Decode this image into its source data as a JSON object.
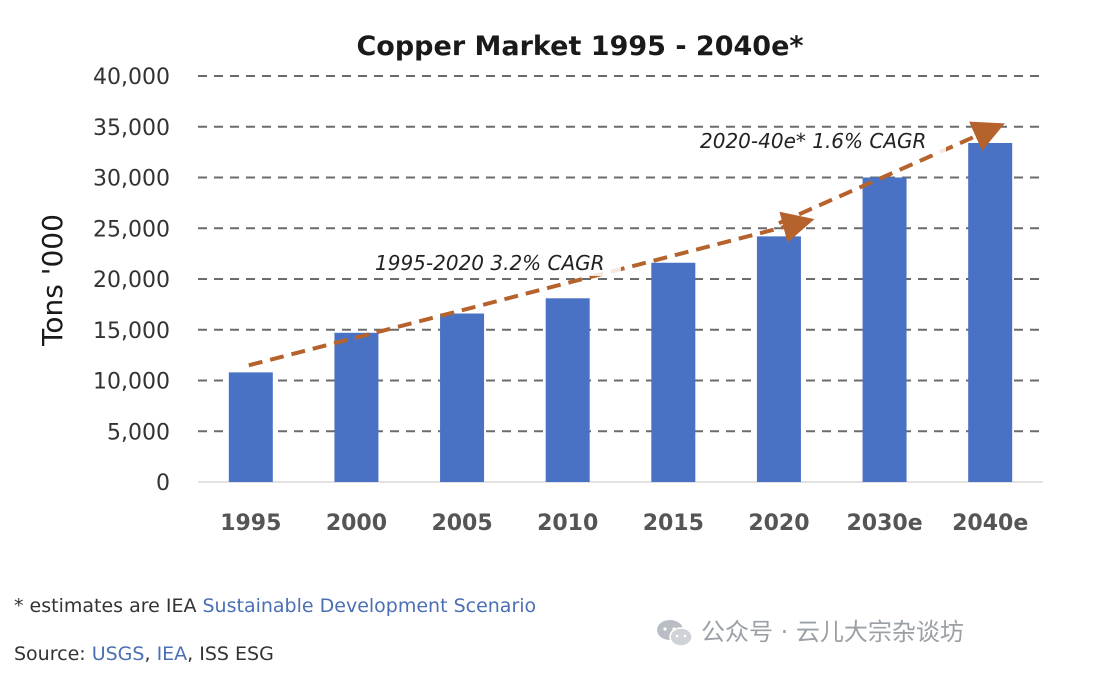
{
  "chart_data": {
    "type": "bar",
    "title": "Copper Market 1995 - 2040e*",
    "ylabel": "Tons '000",
    "xlabel": "",
    "ylim": [
      0,
      40000
    ],
    "yticks": [
      "0",
      "5,000",
      "10,000",
      "15,000",
      "20,000",
      "25,000",
      "30,000",
      "35,000",
      "40,000"
    ],
    "ytick_values": [
      0,
      5000,
      10000,
      15000,
      20000,
      25000,
      30000,
      35000,
      40000
    ],
    "grid": true,
    "categories": [
      "1995",
      "2000",
      "2005",
      "2010",
      "2015",
      "2020",
      "2030e",
      "2040e"
    ],
    "values": [
      10800,
      14700,
      16600,
      18100,
      21600,
      24200,
      30000,
      33400
    ],
    "bar_color": "#4a72c4",
    "annotations": [
      {
        "text": "1995-2020  3.2% CAGR",
        "from": {
          "x": "1995",
          "y": 11500
        },
        "to": {
          "x": "2020",
          "y": 25500
        },
        "color": "#b5622c"
      },
      {
        "text": "2020-40e*  1.6% CAGR",
        "from": {
          "x": "2020",
          "y": 25500
        },
        "to": {
          "x": "2040e",
          "y": 34700
        },
        "color": "#b5622c"
      }
    ]
  },
  "footnote": {
    "prefix": "* estimates are IEA ",
    "link": "Sustainable Development Scenario"
  },
  "source": {
    "label": "Source: ",
    "usgs": "USGS",
    "sep1": ", ",
    "iea": "IEA",
    "rest": ", ISS ESG"
  },
  "watermark": {
    "text": "公众号 · 云儿大宗杂谈坊"
  }
}
